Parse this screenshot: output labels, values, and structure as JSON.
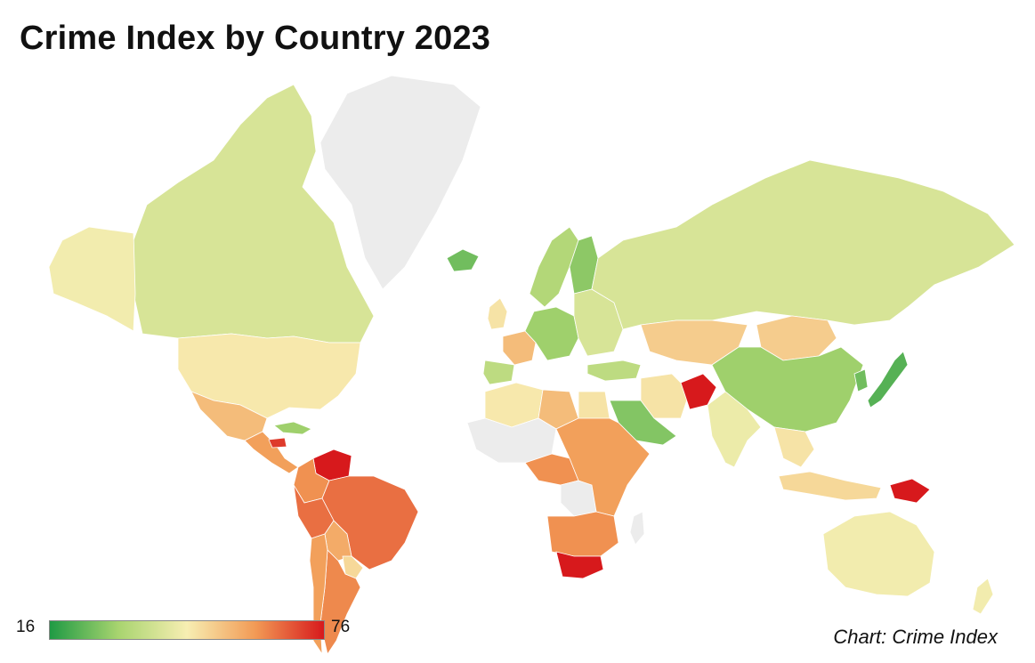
{
  "title": "Crime Index by Country 2023",
  "credit": "Chart: Crime Index",
  "legend": {
    "min_label": "16",
    "max_label": "76",
    "min": 16,
    "max": 76,
    "colors": [
      "#1f9a44",
      "#a8d46f",
      "#f7eeb2",
      "#f29a55",
      "#d7191c"
    ]
  },
  "no_data_color": "#ececec",
  "regions": [
    {
      "name": "greenland",
      "value": null
    },
    {
      "name": "canada",
      "value": 40
    },
    {
      "name": "alaska",
      "value": 45
    },
    {
      "name": "usa",
      "value": 47
    },
    {
      "name": "mexico",
      "value": 55
    },
    {
      "name": "central-america",
      "value": 60
    },
    {
      "name": "cuba",
      "value": 30
    },
    {
      "name": "caribbean-red",
      "value": 72
    },
    {
      "name": "venezuela",
      "value": 76
    },
    {
      "name": "colombia",
      "value": 62
    },
    {
      "name": "brazil",
      "value": 66
    },
    {
      "name": "peru",
      "value": 66
    },
    {
      "name": "bolivia",
      "value": 58
    },
    {
      "name": "paraguay",
      "value": 50
    },
    {
      "name": "argentina",
      "value": 63
    },
    {
      "name": "chile",
      "value": 60
    },
    {
      "name": "iceland",
      "value": 25
    },
    {
      "name": "scandinavia",
      "value": 33
    },
    {
      "name": "finland",
      "value": 28
    },
    {
      "name": "uk",
      "value": 48
    },
    {
      "name": "france",
      "value": 55
    },
    {
      "name": "spain",
      "value": 35
    },
    {
      "name": "central-europe",
      "value": 30
    },
    {
      "name": "eastern-europe",
      "value": 40
    },
    {
      "name": "russia",
      "value": 40
    },
    {
      "name": "kazakhstan",
      "value": 52
    },
    {
      "name": "mongolia",
      "value": 52
    },
    {
      "name": "china",
      "value": 30
    },
    {
      "name": "japan",
      "value": 22
    },
    {
      "name": "korea",
      "value": 25
    },
    {
      "name": "turkey",
      "value": 35
    },
    {
      "name": "iran",
      "value": 48
    },
    {
      "name": "afghanistan",
      "value": 76
    },
    {
      "name": "india",
      "value": 44
    },
    {
      "name": "saudi-arabia",
      "value": 27
    },
    {
      "name": "north-africa",
      "value": 47
    },
    {
      "name": "libya",
      "value": 55
    },
    {
      "name": "egypt",
      "value": 48
    },
    {
      "name": "west-africa",
      "value": null
    },
    {
      "name": "central-africa",
      "value": 62
    },
    {
      "name": "congo",
      "value": null
    },
    {
      "name": "east-africa",
      "value": 60
    },
    {
      "name": "southern-africa",
      "value": 62
    },
    {
      "name": "south-africa",
      "value": 76
    },
    {
      "name": "madagascar",
      "value": null
    },
    {
      "name": "southeast-asia",
      "value": 48
    },
    {
      "name": "indonesia",
      "value": 50
    },
    {
      "name": "papua-new-guinea",
      "value": 76
    },
    {
      "name": "australia",
      "value": 45
    },
    {
      "name": "new-zealand",
      "value": 45
    }
  ]
}
